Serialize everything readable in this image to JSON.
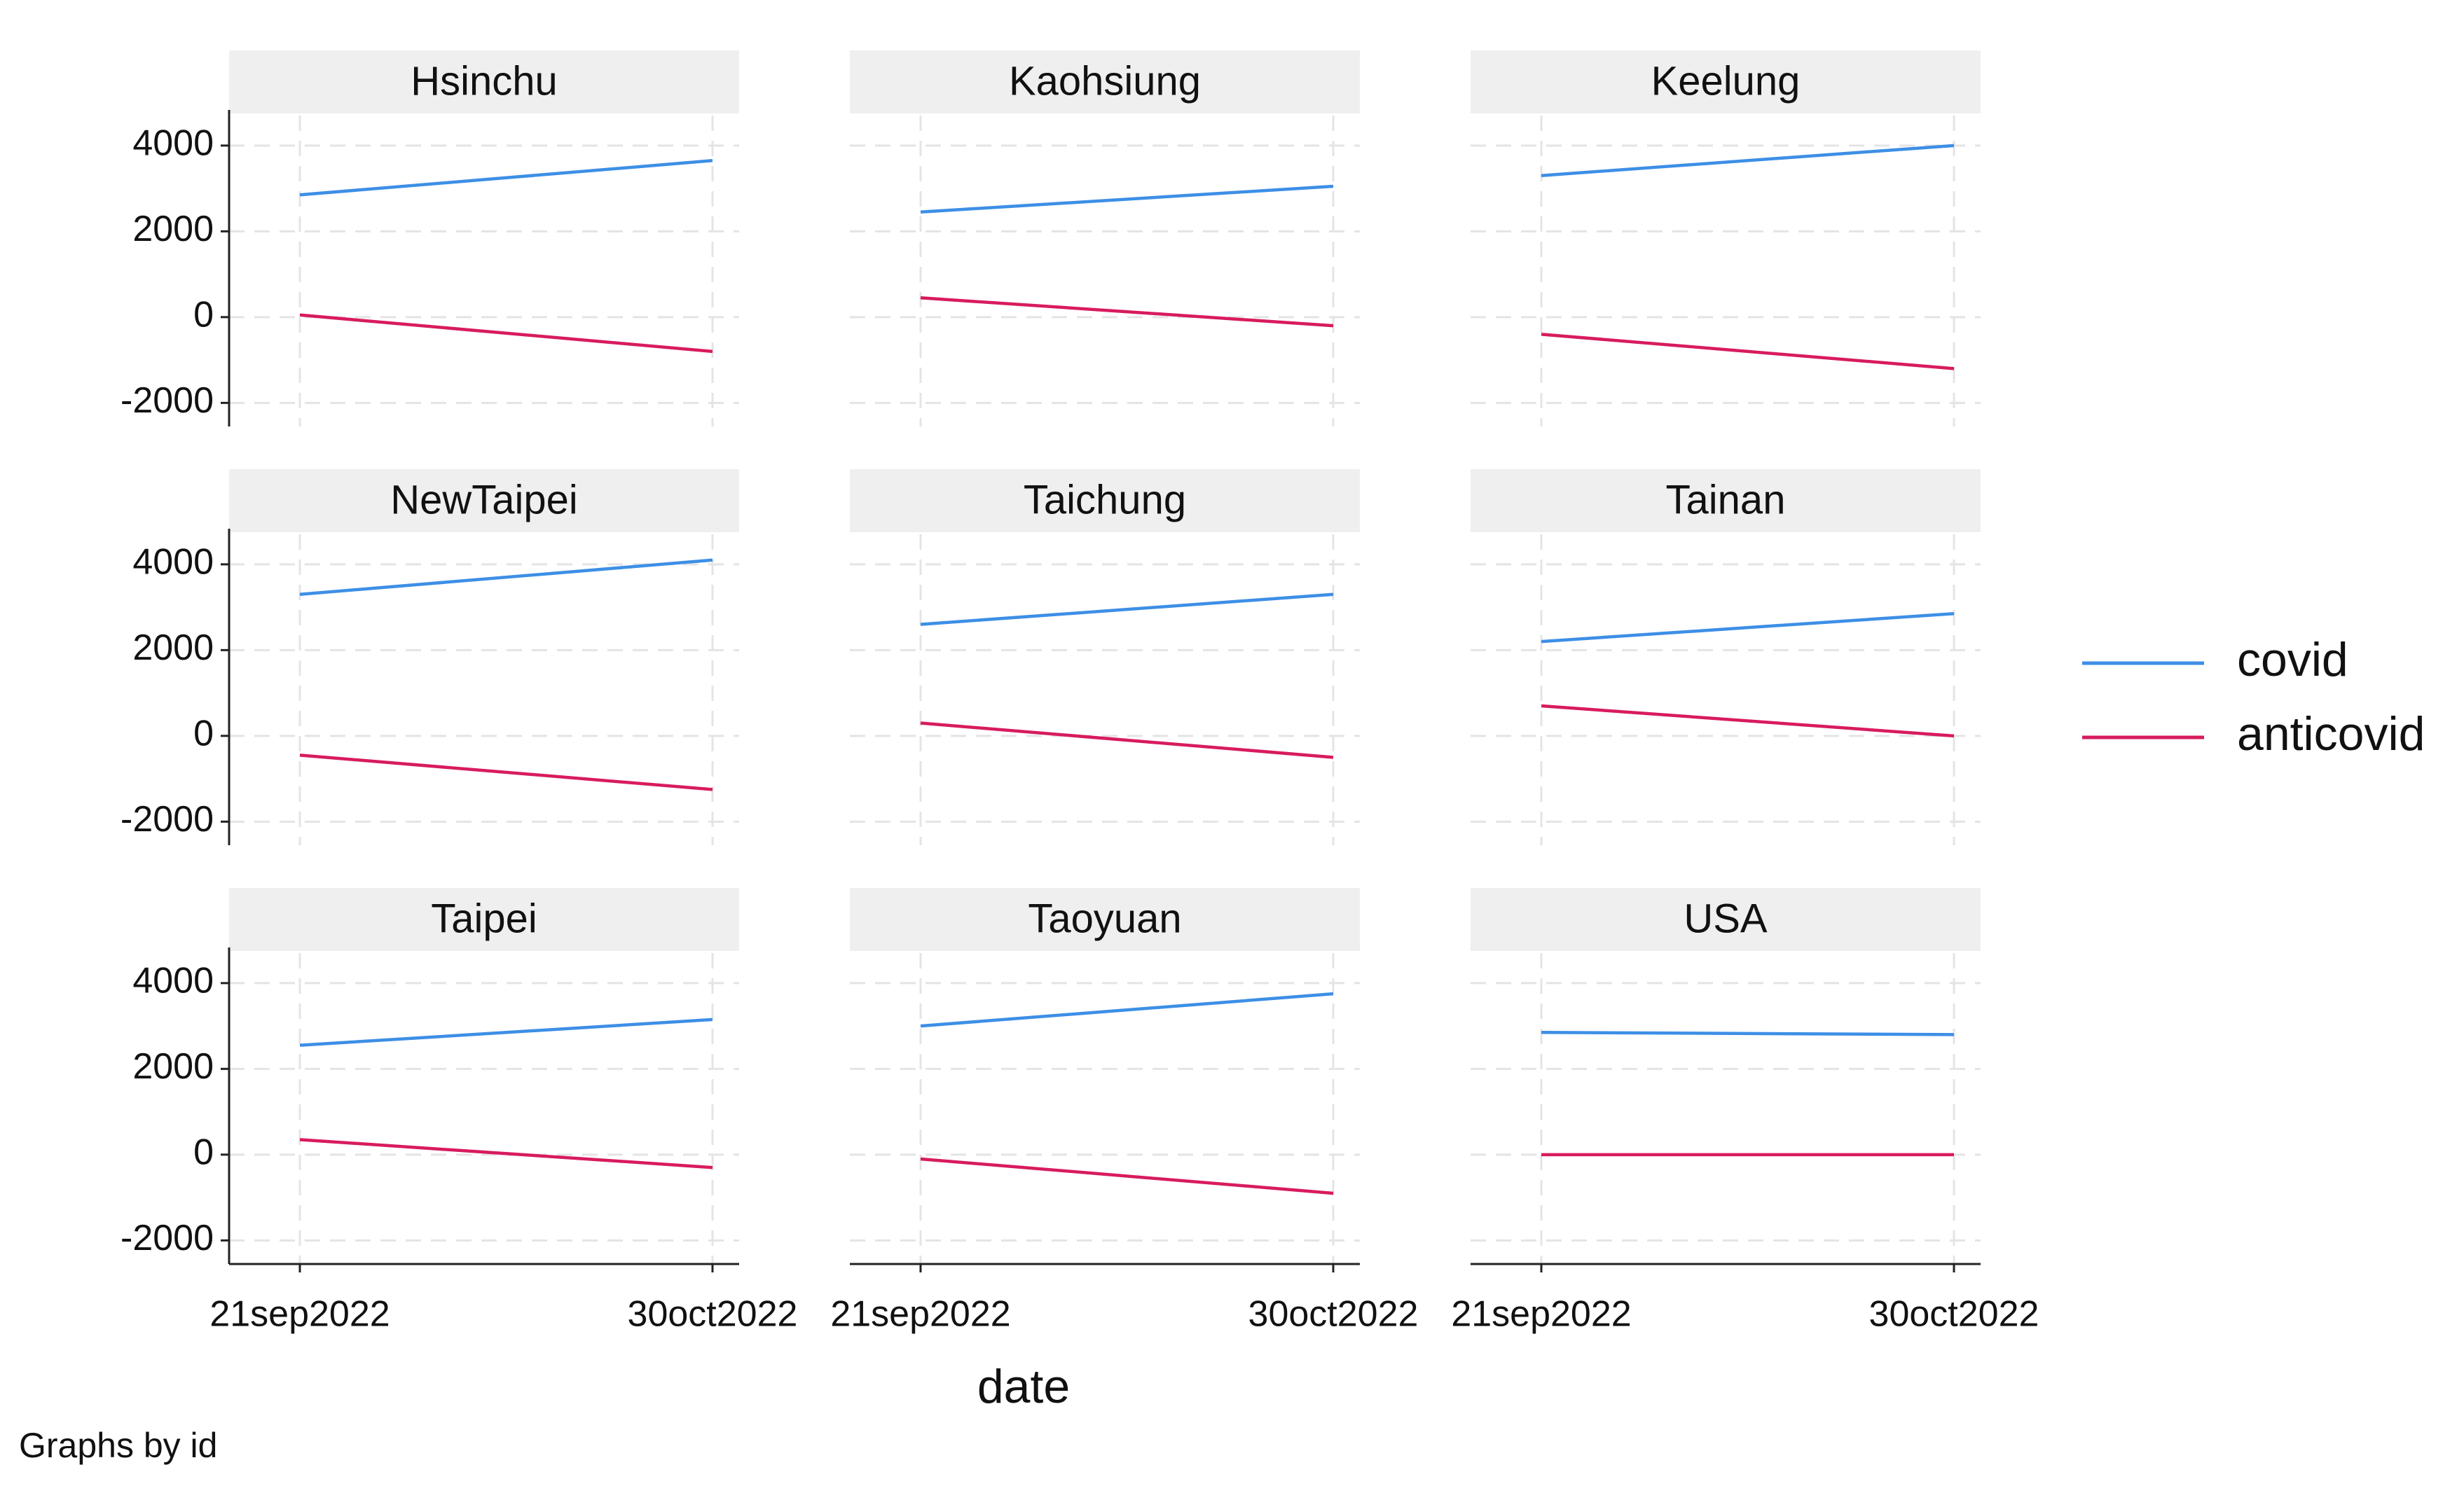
{
  "chart_data": [
    {
      "type": "line",
      "title": "Hsinchu",
      "x": [
        "21sep2022",
        "30oct2022"
      ],
      "xticks": [
        "21sep2022",
        "30oct2022"
      ],
      "ylim": [
        -2550,
        4700
      ],
      "yticks": [
        -2000,
        0,
        2000,
        4000
      ],
      "grid": true,
      "series": [
        {
          "name": "covid",
          "color": "#3d8fe6",
          "values": [
            2850,
            3650
          ]
        },
        {
          "name": "anticovid",
          "color": "#d81b5e",
          "values": [
            50,
            -800
          ]
        }
      ]
    },
    {
      "type": "line",
      "title": "Kaohsiung",
      "x": [
        "21sep2022",
        "30oct2022"
      ],
      "xticks": [
        "21sep2022",
        "30oct2022"
      ],
      "ylim": [
        -2550,
        4700
      ],
      "yticks": [
        -2000,
        0,
        2000,
        4000
      ],
      "grid": true,
      "series": [
        {
          "name": "covid",
          "color": "#3d8fe6",
          "values": [
            2450,
            3050
          ]
        },
        {
          "name": "anticovid",
          "color": "#d81b5e",
          "values": [
            450,
            -200
          ]
        }
      ]
    },
    {
      "type": "line",
      "title": "Keelung",
      "x": [
        "21sep2022",
        "30oct2022"
      ],
      "xticks": [
        "21sep2022",
        "30oct2022"
      ],
      "ylim": [
        -2550,
        4700
      ],
      "yticks": [
        -2000,
        0,
        2000,
        4000
      ],
      "grid": true,
      "series": [
        {
          "name": "covid",
          "color": "#3d8fe6",
          "values": [
            3300,
            4000
          ]
        },
        {
          "name": "anticovid",
          "color": "#d81b5e",
          "values": [
            -400,
            -1200
          ]
        }
      ]
    },
    {
      "type": "line",
      "title": "NewTaipei",
      "x": [
        "21sep2022",
        "30oct2022"
      ],
      "xticks": [
        "21sep2022",
        "30oct2022"
      ],
      "ylim": [
        -2550,
        4700
      ],
      "yticks": [
        -2000,
        0,
        2000,
        4000
      ],
      "grid": true,
      "series": [
        {
          "name": "covid",
          "color": "#3d8fe6",
          "values": [
            3300,
            4100
          ]
        },
        {
          "name": "anticovid",
          "color": "#d81b5e",
          "values": [
            -450,
            -1250
          ]
        }
      ]
    },
    {
      "type": "line",
      "title": "Taichung",
      "x": [
        "21sep2022",
        "30oct2022"
      ],
      "xticks": [
        "21sep2022",
        "30oct2022"
      ],
      "ylim": [
        -2550,
        4700
      ],
      "yticks": [
        -2000,
        0,
        2000,
        4000
      ],
      "grid": true,
      "series": [
        {
          "name": "covid",
          "color": "#3d8fe6",
          "values": [
            2600,
            3300
          ]
        },
        {
          "name": "anticovid",
          "color": "#d81b5e",
          "values": [
            300,
            -500
          ]
        }
      ]
    },
    {
      "type": "line",
      "title": "Tainan",
      "x": [
        "21sep2022",
        "30oct2022"
      ],
      "xticks": [
        "21sep2022",
        "30oct2022"
      ],
      "ylim": [
        -2550,
        4700
      ],
      "yticks": [
        -2000,
        0,
        2000,
        4000
      ],
      "grid": true,
      "series": [
        {
          "name": "covid",
          "color": "#3d8fe6",
          "values": [
            2200,
            2850
          ]
        },
        {
          "name": "anticovid",
          "color": "#d81b5e",
          "values": [
            700,
            0
          ]
        }
      ]
    },
    {
      "type": "line",
      "title": "Taipei",
      "x": [
        "21sep2022",
        "30oct2022"
      ],
      "xticks": [
        "21sep2022",
        "30oct2022"
      ],
      "ylim": [
        -2550,
        4700
      ],
      "yticks": [
        -2000,
        0,
        2000,
        4000
      ],
      "grid": true,
      "series": [
        {
          "name": "covid",
          "color": "#3d8fe6",
          "values": [
            2550,
            3150
          ]
        },
        {
          "name": "anticovid",
          "color": "#d81b5e",
          "values": [
            350,
            -300
          ]
        }
      ]
    },
    {
      "type": "line",
      "title": "Taoyuan",
      "x": [
        "21sep2022",
        "30oct2022"
      ],
      "xticks": [
        "21sep2022",
        "30oct2022"
      ],
      "ylim": [
        -2550,
        4700
      ],
      "yticks": [
        -2000,
        0,
        2000,
        4000
      ],
      "grid": true,
      "series": [
        {
          "name": "covid",
          "color": "#3d8fe6",
          "values": [
            3000,
            3750
          ]
        },
        {
          "name": "anticovid",
          "color": "#d81b5e",
          "values": [
            -100,
            -900
          ]
        }
      ]
    },
    {
      "type": "line",
      "title": "USA",
      "x": [
        "21sep2022",
        "30oct2022"
      ],
      "xticks": [
        "21sep2022",
        "30oct2022"
      ],
      "ylim": [
        -2550,
        4700
      ],
      "yticks": [
        -2000,
        0,
        2000,
        4000
      ],
      "grid": true,
      "series": [
        {
          "name": "covid",
          "color": "#3d8fe6",
          "values": [
            2850,
            2800
          ]
        },
        {
          "name": "anticovid",
          "color": "#d81b5e",
          "values": [
            0,
            0
          ]
        }
      ]
    }
  ],
  "xlabel": "date",
  "note": "Graphs by id"
}
